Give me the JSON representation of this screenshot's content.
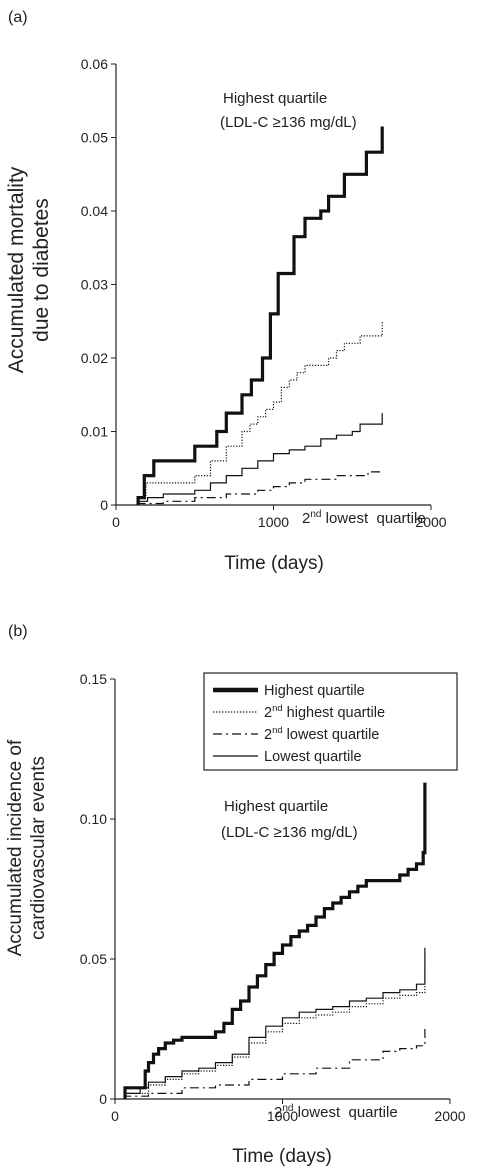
{
  "panels": [
    {
      "label": "(a)",
      "ylabel_line1": "Accumulated mortality",
      "ylabel_line2": "due to diabetes",
      "xlabel": "Time (days)",
      "annotation_top_line1": "Highest quartile",
      "annotation_top_line2": "(LDL-C ≥136 mg/dL)",
      "annotation_bottom_pre": "2",
      "annotation_bottom_sup": "nd",
      "annotation_bottom_post": " lowest  quartile"
    },
    {
      "label": "(b)",
      "ylabel_line1": "Accumulated incidence of",
      "ylabel_line2": "cardiovascular events",
      "xlabel": "Time (days)",
      "annotation_top_line1": "Highest quartile",
      "annotation_top_line2": "(LDL-C ≥136 mg/dL)",
      "annotation_bottom_pre": "2",
      "annotation_bottom_sup": "nd",
      "annotation_bottom_post": " lowest  quartile",
      "legend": [
        {
          "pre": "Highest quartile",
          "sup": "",
          "post": ""
        },
        {
          "pre": "2",
          "sup": "nd",
          "post": " highest quartile"
        },
        {
          "pre": "2",
          "sup": "nd",
          "post": " lowest quartile"
        },
        {
          "pre": "Lowest quartile",
          "sup": "",
          "post": ""
        }
      ]
    }
  ],
  "chart_data": [
    {
      "type": "line",
      "step": true,
      "xlabel": "Time (days)",
      "ylabel": "Accumulated mortality due to diabetes",
      "xlim": [
        0,
        2000
      ],
      "ylim": [
        0,
        0.06
      ],
      "xticks": [
        0,
        1000,
        2000
      ],
      "xtick_labels": [
        "0",
        "1000",
        "2000"
      ],
      "yticks": [
        0,
        0.01,
        0.02,
        0.03,
        0.04,
        0.05,
        0.06
      ],
      "ytick_labels": [
        "0",
        "0.01",
        "0.02",
        "0.03",
        "0.04",
        "0.05",
        "0.06"
      ],
      "series": [
        {
          "name": "Highest quartile",
          "style": "thick",
          "x": [
            140,
            180,
            240,
            500,
            640,
            700,
            800,
            860,
            930,
            980,
            1030,
            1130,
            1200,
            1300,
            1350,
            1450,
            1500,
            1590,
            1660,
            1690
          ],
          "y": [
            0.001,
            0.004,
            0.006,
            0.008,
            0.01,
            0.0125,
            0.015,
            0.017,
            0.02,
            0.026,
            0.0315,
            0.0365,
            0.039,
            0.04,
            0.042,
            0.045,
            0.045,
            0.048,
            0.048,
            0.0515
          ]
        },
        {
          "name": "2nd highest quartile",
          "style": "dotted",
          "x": [
            140,
            190,
            300,
            500,
            600,
            700,
            800,
            850,
            900,
            950,
            1000,
            1050,
            1100,
            1150,
            1200,
            1300,
            1350,
            1400,
            1450,
            1500,
            1550,
            1600,
            1650,
            1690
          ],
          "y": [
            0.001,
            0.003,
            0.003,
            0.004,
            0.006,
            0.008,
            0.01,
            0.011,
            0.012,
            0.013,
            0.014,
            0.016,
            0.017,
            0.018,
            0.019,
            0.019,
            0.02,
            0.021,
            0.022,
            0.022,
            0.023,
            0.023,
            0.023,
            0.025
          ]
        },
        {
          "name": "Lowest quartile",
          "style": "solid",
          "x": [
            140,
            200,
            300,
            500,
            600,
            700,
            800,
            900,
            1000,
            1100,
            1200,
            1300,
            1400,
            1500,
            1550,
            1690
          ],
          "y": [
            0.0005,
            0.001,
            0.0015,
            0.002,
            0.003,
            0.004,
            0.005,
            0.006,
            0.007,
            0.0075,
            0.008,
            0.009,
            0.0095,
            0.01,
            0.011,
            0.0125
          ]
        },
        {
          "name": "2nd lowest quartile",
          "style": "dashdot",
          "x": [
            140,
            300,
            500,
            700,
            900,
            1000,
            1100,
            1200,
            1300,
            1400,
            1500,
            1600,
            1690
          ],
          "y": [
            0.0002,
            0.0005,
            0.001,
            0.0015,
            0.002,
            0.0025,
            0.003,
            0.0035,
            0.0035,
            0.004,
            0.004,
            0.0045,
            0.0045
          ]
        }
      ]
    },
    {
      "type": "line",
      "step": true,
      "xlabel": "Time (days)",
      "ylabel": "Accumulated incidence of cardiovascular events",
      "xlim": [
        0,
        2000
      ],
      "ylim": [
        0,
        0.15
      ],
      "xticks": [
        0,
        1000,
        2000
      ],
      "xtick_labels": [
        "0",
        "1000",
        "2000"
      ],
      "yticks": [
        0,
        0.05,
        0.1,
        0.15
      ],
      "ytick_labels": [
        "0",
        "0.05",
        "0.10",
        "0.15"
      ],
      "legend_position": "top-right",
      "series": [
        {
          "name": "Highest quartile",
          "style": "thick",
          "x": [
            60,
            100,
            150,
            180,
            200,
            230,
            260,
            300,
            350,
            400,
            450,
            600,
            650,
            700,
            750,
            800,
            850,
            900,
            950,
            1000,
            1050,
            1100,
            1150,
            1200,
            1250,
            1300,
            1350,
            1400,
            1450,
            1500,
            1650,
            1700,
            1750,
            1800,
            1840,
            1850
          ],
          "y": [
            0.004,
            0.004,
            0.004,
            0.01,
            0.013,
            0.016,
            0.018,
            0.02,
            0.021,
            0.022,
            0.022,
            0.024,
            0.027,
            0.032,
            0.035,
            0.04,
            0.044,
            0.048,
            0.052,
            0.055,
            0.058,
            0.06,
            0.062,
            0.065,
            0.068,
            0.07,
            0.072,
            0.074,
            0.076,
            0.078,
            0.078,
            0.08,
            0.082,
            0.084,
            0.088,
            0.113
          ]
        },
        {
          "name": "2nd highest quartile",
          "style": "dotted",
          "x": [
            60,
            200,
            300,
            400,
            500,
            600,
            700,
            800,
            900,
            1000,
            1100,
            1200,
            1300,
            1400,
            1500,
            1600,
            1700,
            1800,
            1850
          ],
          "y": [
            0.002,
            0.005,
            0.007,
            0.009,
            0.01,
            0.012,
            0.015,
            0.02,
            0.024,
            0.027,
            0.029,
            0.03,
            0.031,
            0.033,
            0.034,
            0.036,
            0.037,
            0.038,
            0.047
          ]
        },
        {
          "name": "2nd lowest quartile",
          "style": "dashdot",
          "x": [
            60,
            200,
            400,
            600,
            800,
            1000,
            1200,
            1400,
            1600,
            1700,
            1800,
            1850
          ],
          "y": [
            0.001,
            0.002,
            0.004,
            0.005,
            0.007,
            0.009,
            0.011,
            0.014,
            0.017,
            0.018,
            0.019,
            0.025
          ]
        },
        {
          "name": "Lowest quartile",
          "style": "solid",
          "x": [
            60,
            150,
            200,
            300,
            400,
            500,
            600,
            700,
            800,
            900,
            1000,
            1100,
            1200,
            1300,
            1400,
            1500,
            1600,
            1700,
            1800,
            1850
          ],
          "y": [
            0.002,
            0.004,
            0.006,
            0.008,
            0.01,
            0.011,
            0.013,
            0.016,
            0.022,
            0.026,
            0.029,
            0.031,
            0.032,
            0.033,
            0.035,
            0.036,
            0.038,
            0.039,
            0.041,
            0.054
          ]
        }
      ]
    }
  ]
}
